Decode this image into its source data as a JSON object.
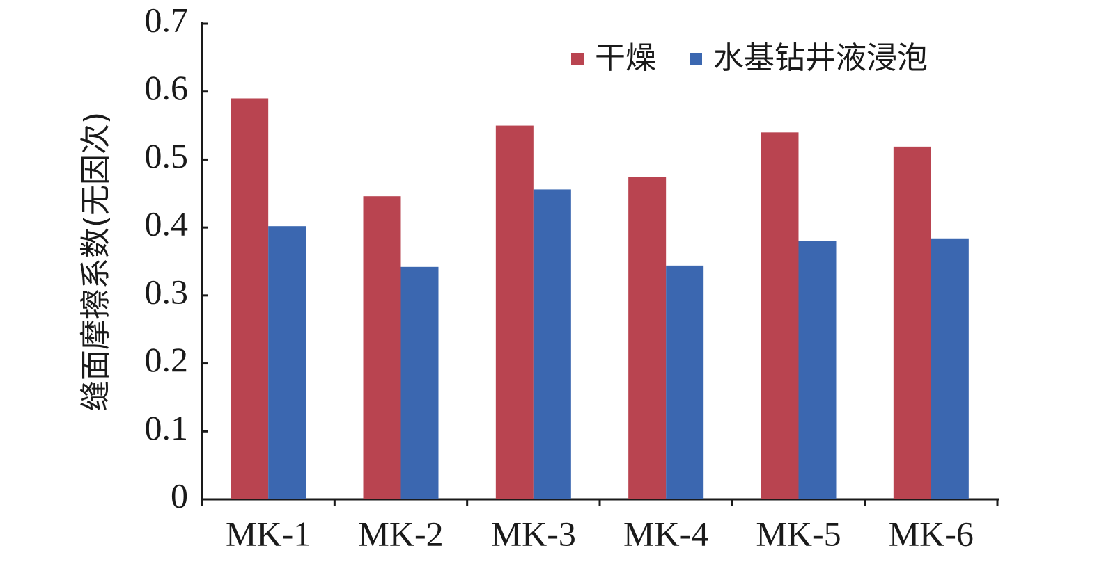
{
  "chart_data": {
    "type": "bar",
    "y_label": "缝面摩擦系数(无因次)",
    "categories": [
      "MK-1",
      "MK-2",
      "MK-3",
      "MK-4",
      "MK-5",
      "MK-6"
    ],
    "series": [
      {
        "name": "干燥",
        "color": "#b94450",
        "values": [
          0.59,
          0.446,
          0.55,
          0.474,
          0.54,
          0.519
        ]
      },
      {
        "name": "水基钻井液浸泡",
        "color": "#3b67b0",
        "values": [
          0.402,
          0.342,
          0.456,
          0.344,
          0.38,
          0.384
        ]
      }
    ],
    "ylim": [
      0,
      0.7
    ],
    "yticks": [
      0,
      0.1,
      0.2,
      0.3,
      0.4,
      0.5,
      0.6,
      0.7
    ],
    "grid": false,
    "legend": "top-right"
  }
}
